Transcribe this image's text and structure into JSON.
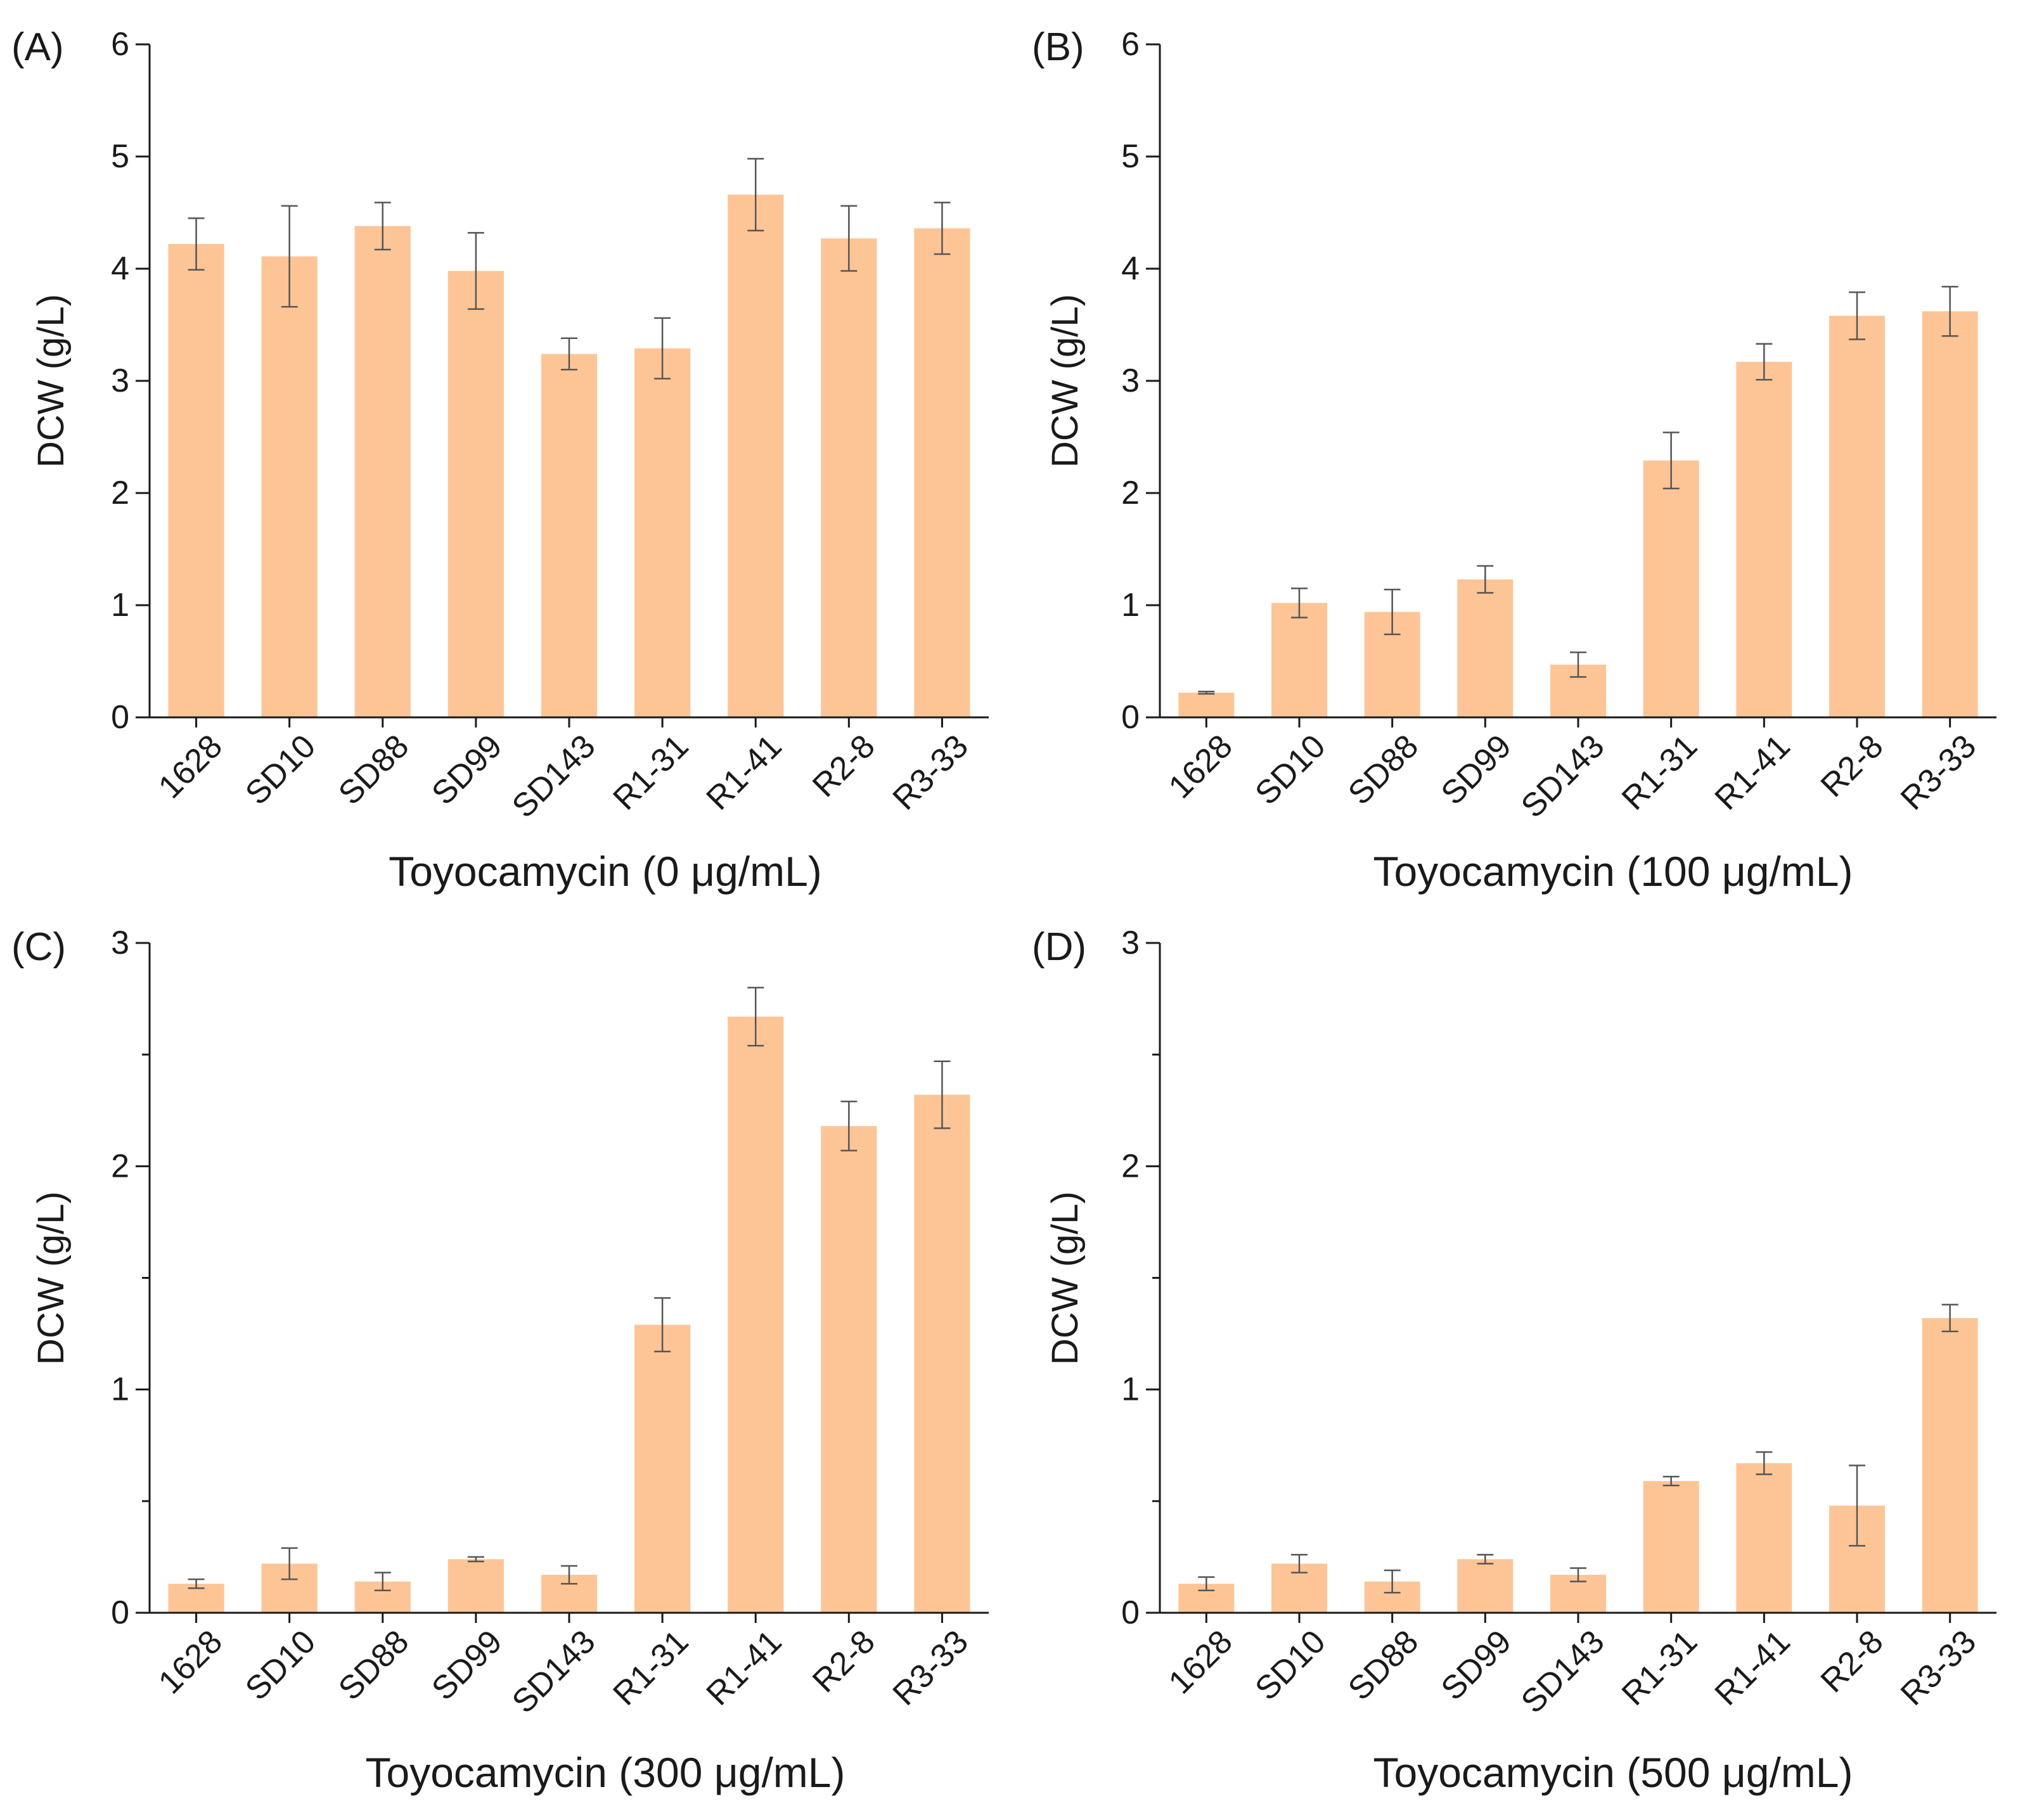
{
  "figure": {
    "bar_color": "#fdc596",
    "error_color": "#555555",
    "axis_color": "#1a1a1a"
  },
  "chart_data": [
    {
      "type": "bar",
      "panel": "(A)",
      "title": "",
      "xlabel": "Toyocamycin (0 μg/mL)",
      "ylabel": "DCW (g/L)",
      "ylim": [
        0,
        6
      ],
      "yticks": [
        0,
        1,
        2,
        3,
        4,
        5,
        6
      ],
      "grid": false,
      "categories": [
        "1628",
        "SD10",
        "SD88",
        "SD99",
        "SD143",
        "R1-31",
        "R1-41",
        "R2-8",
        "R3-33"
      ],
      "values": [
        4.22,
        4.11,
        4.38,
        3.98,
        3.24,
        3.29,
        4.66,
        4.27,
        4.36
      ],
      "errors": [
        0.23,
        0.45,
        0.21,
        0.34,
        0.14,
        0.27,
        0.32,
        0.29,
        0.23
      ]
    },
    {
      "type": "bar",
      "panel": "(B)",
      "title": "",
      "xlabel": "Toyocamycin (100 μg/mL)",
      "ylabel": "DCW (g/L)",
      "ylim": [
        0,
        6
      ],
      "yticks": [
        0,
        1,
        2,
        3,
        4,
        5,
        6
      ],
      "grid": false,
      "categories": [
        "1628",
        "SD10",
        "SD88",
        "SD99",
        "SD143",
        "R1-31",
        "R1-41",
        "R2-8",
        "R3-33"
      ],
      "values": [
        0.22,
        1.02,
        0.94,
        1.23,
        0.47,
        2.29,
        3.17,
        3.58,
        3.62
      ],
      "errors": [
        0.01,
        0.13,
        0.2,
        0.12,
        0.11,
        0.25,
        0.16,
        0.21,
        0.22
      ]
    },
    {
      "type": "bar",
      "panel": "(C)",
      "title": "",
      "xlabel": "Toyocamycin (300 μg/mL)",
      "ylabel": "DCW (g/L)",
      "ylim": [
        0,
        3
      ],
      "yticks": [
        0,
        1,
        2,
        3
      ],
      "minor_yticks": [
        0.5,
        1.5,
        2.5
      ],
      "grid": false,
      "categories": [
        "1628",
        "SD10",
        "SD88",
        "SD99",
        "SD143",
        "R1-31",
        "R1-41",
        "R2-8",
        "R3-33"
      ],
      "values": [
        0.13,
        0.22,
        0.14,
        0.24,
        0.17,
        1.29,
        2.67,
        2.18,
        2.32
      ],
      "errors": [
        0.02,
        0.07,
        0.04,
        0.01,
        0.04,
        0.12,
        0.13,
        0.11,
        0.15
      ]
    },
    {
      "type": "bar",
      "panel": "(D)",
      "title": "",
      "xlabel": "Toyocamycin (500 μg/mL)",
      "ylabel": "DCW (g/L)",
      "ylim": [
        0,
        3
      ],
      "yticks": [
        0,
        1,
        2,
        3
      ],
      "minor_yticks": [
        0.5,
        1.5,
        2.5
      ],
      "grid": false,
      "categories": [
        "1628",
        "SD10",
        "SD88",
        "SD99",
        "SD143",
        "R1-31",
        "R1-41",
        "R2-8",
        "R3-33"
      ],
      "values": [
        0.13,
        0.22,
        0.14,
        0.24,
        0.17,
        0.59,
        0.67,
        0.48,
        1.32
      ],
      "errors": [
        0.03,
        0.04,
        0.05,
        0.02,
        0.03,
        0.02,
        0.05,
        0.18,
        0.06
      ]
    }
  ]
}
